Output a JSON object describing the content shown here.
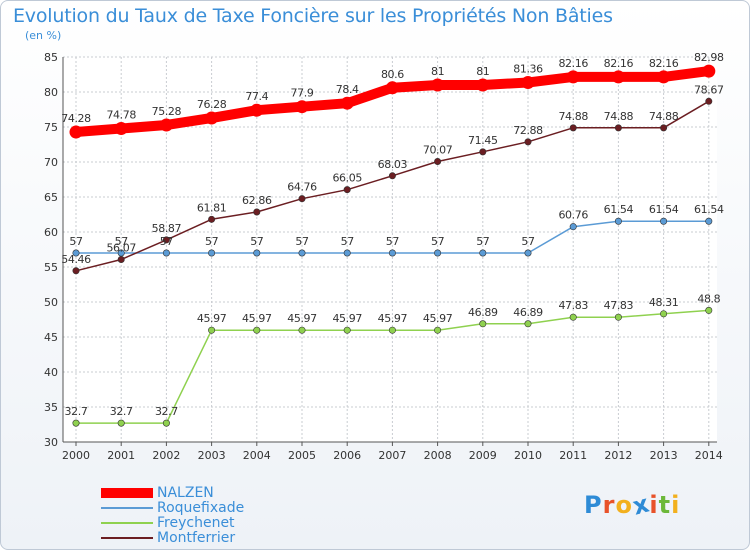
{
  "chart_data": {
    "type": "line",
    "title": "Evolution du Taux de Taxe Foncière sur les Propriétés Non Bâties",
    "ylabel": "(en %)",
    "xlabel": "",
    "ylim": [
      30,
      85
    ],
    "yticks": [
      "30",
      "35",
      "40",
      "45",
      "50",
      "55",
      "60",
      "65",
      "70",
      "75",
      "80",
      "85"
    ],
    "categories": [
      "2000",
      "2001",
      "2002",
      "2003",
      "2004",
      "2005",
      "2006",
      "2007",
      "2008",
      "2009",
      "2010",
      "2011",
      "2012",
      "2013",
      "2014"
    ],
    "series": [
      {
        "name": "NALZEN",
        "color": "#ff0000",
        "values": [
          74.28,
          74.78,
          75.28,
          76.28,
          77.4,
          77.9,
          78.4,
          80.6,
          81,
          81,
          81.36,
          82.16,
          82.16,
          82.16,
          82.98
        ],
        "labels": [
          "74.28",
          "74.78",
          "75.28",
          "76.28",
          "77.4",
          "77.9",
          "78.4",
          "80.6",
          "81",
          "81",
          "81.36",
          "82.16",
          "82.16",
          "82.16",
          "82.98"
        ]
      },
      {
        "name": "Roquefixade",
        "color": "#5b9bd5",
        "values": [
          57,
          57,
          57,
          57,
          57,
          57,
          57,
          57,
          57,
          57,
          57,
          60.76,
          61.54,
          61.54,
          61.54
        ],
        "labels": [
          "57",
          "57",
          "57",
          "57",
          "57",
          "57",
          "57",
          "57",
          "57",
          "57",
          "57",
          "60.76",
          "61.54",
          "61.54",
          "61.54"
        ]
      },
      {
        "name": "Freychenet",
        "color": "#8fd14f",
        "values": [
          32.7,
          32.7,
          32.7,
          45.97,
          45.97,
          45.97,
          45.97,
          45.97,
          45.97,
          46.89,
          46.89,
          47.83,
          47.83,
          48.31,
          48.8
        ],
        "labels": [
          "32.7",
          "32.7",
          "32.7",
          "45.97",
          "45.97",
          "45.97",
          "45.97",
          "45.97",
          "45.97",
          "46.89",
          "46.89",
          "47.83",
          "47.83",
          "48.31",
          "48.8"
        ]
      },
      {
        "name": "Montferrier",
        "color": "#6b1e22",
        "values": [
          54.46,
          56.07,
          58.87,
          61.81,
          62.86,
          64.76,
          66.05,
          68.03,
          70.07,
          71.45,
          72.88,
          74.88,
          74.88,
          74.88,
          78.67
        ],
        "labels": [
          "54.46",
          "56.07",
          "58.87",
          "61.81",
          "62.86",
          "64.76",
          "66.05",
          "68.03",
          "70.07",
          "71.45",
          "72.88",
          "74.88",
          "74.88",
          "74.88",
          "78.67"
        ]
      }
    ]
  },
  "legend": {
    "items": [
      {
        "label": "NALZEN",
        "color": "#ff0000"
      },
      {
        "label": "Roquefixade",
        "color": "#5b9bd5"
      },
      {
        "label": "Freychenet",
        "color": "#8fd14f"
      },
      {
        "label": "Montferrier",
        "color": "#6b1e22"
      }
    ]
  },
  "logo": {
    "letters": [
      "P",
      "r",
      "o",
      "x",
      "i",
      "t",
      "i"
    ],
    "colors": [
      "#2e8bd6",
      "#e8522a",
      "#f2b01e",
      "#2e8bd6",
      "#e8522a",
      "#6cb83a",
      "#f2b01e"
    ]
  }
}
